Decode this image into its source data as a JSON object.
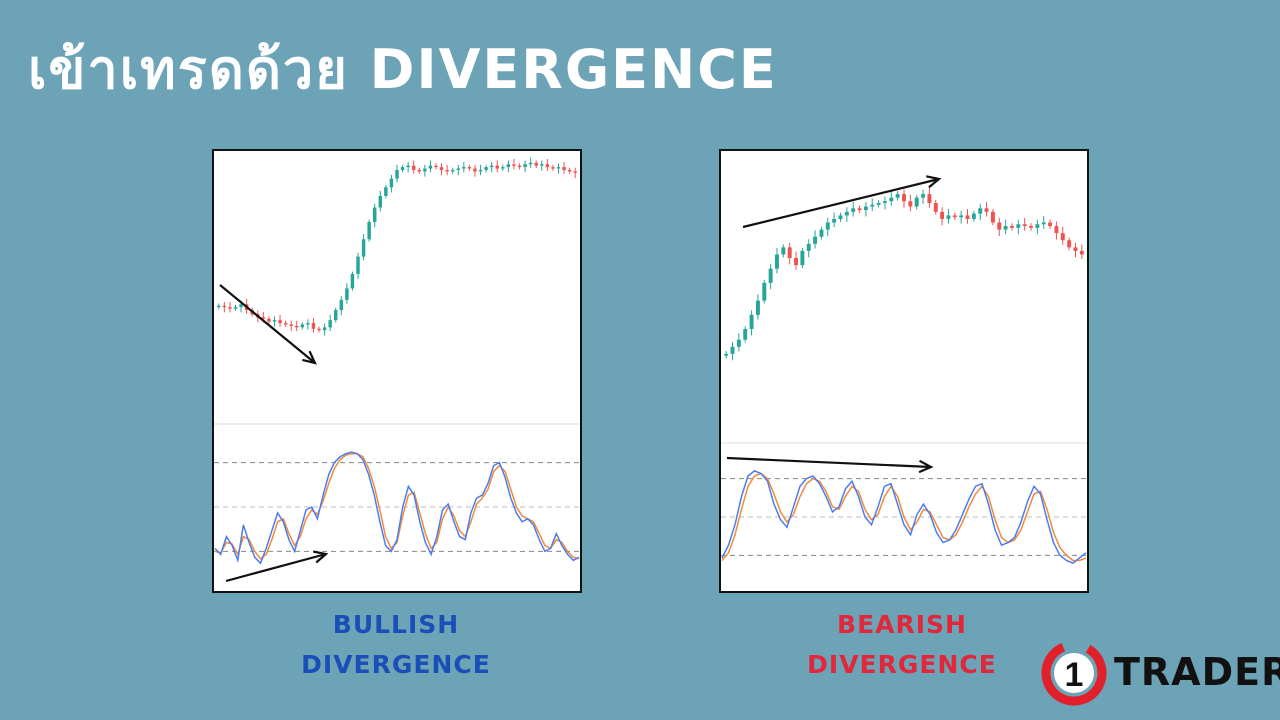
{
  "title": "เข้าเทรดด้วย DIVERGENCE",
  "colors": {
    "background": "#6ca3b7",
    "bull_candle": "#26a69a",
    "bear_candle": "#ef5350",
    "stoch_k": "#4e7cf0",
    "stoch_d": "#f08a3c",
    "bullish_caption": "#1a4fb8",
    "bearish_caption": "#e0283a",
    "logo_red": "#e0202a"
  },
  "captions": {
    "bullish_line1": "BULLISH",
    "bullish_line2": "DIVERGENCE",
    "bearish_line1": "BEARISH",
    "bearish_line2": "DIVERGENCE"
  },
  "logo": {
    "number": "1",
    "text": "TRADER",
    "icon": "ring-logo-icon"
  },
  "chart_data": [
    {
      "type": "candlestick",
      "name_hint": "bullish-divergence",
      "price": [
        112,
        111,
        110,
        111,
        113,
        109,
        106,
        104,
        103,
        101,
        102,
        100,
        99,
        98,
        97,
        99,
        100,
        96,
        95,
        97,
        102,
        109,
        116,
        124,
        134,
        146,
        158,
        170,
        180,
        188,
        194,
        200,
        206,
        208,
        209,
        206,
        205,
        207,
        209,
        208,
        206,
        205,
        206,
        207,
        208,
        207,
        205,
        206,
        208,
        209,
        207,
        208,
        210,
        209,
        208,
        210,
        211,
        209,
        210,
        208,
        207,
        208,
        206,
        205,
        204
      ],
      "stoch": [
        22,
        18,
        30,
        24,
        14,
        38,
        26,
        16,
        12,
        22,
        34,
        46,
        40,
        28,
        20,
        34,
        48,
        50,
        42,
        58,
        72,
        80,
        84,
        86,
        87,
        86,
        82,
        72,
        58,
        40,
        24,
        20,
        28,
        50,
        64,
        58,
        40,
        26,
        18,
        30,
        48,
        52,
        40,
        30,
        28,
        46,
        56,
        58,
        66,
        78,
        80,
        70,
        56,
        46,
        40,
        42,
        38,
        28,
        20,
        22,
        32,
        24,
        18,
        14,
        16
      ],
      "stoch_signal": [
        20,
        19,
        26,
        25,
        18,
        30,
        28,
        20,
        15,
        18,
        28,
        40,
        42,
        32,
        24,
        30,
        42,
        48,
        45,
        54,
        66,
        76,
        82,
        85,
        86,
        86,
        84,
        76,
        64,
        48,
        30,
        22,
        26,
        44,
        58,
        60,
        46,
        32,
        22,
        26,
        42,
        50,
        44,
        34,
        30,
        40,
        52,
        56,
        62,
        74,
        78,
        74,
        62,
        50,
        44,
        42,
        40,
        32,
        24,
        22,
        28,
        26,
        20,
        16,
        15
      ],
      "stoch_levels": [
        80,
        50,
        20
      ],
      "price_arrow_direction": "down",
      "stoch_arrow_direction": "up"
    },
    {
      "type": "candlestick",
      "name_hint": "bearish-divergence",
      "price": [
        100,
        104,
        108,
        114,
        122,
        130,
        140,
        148,
        156,
        160,
        154,
        150,
        158,
        162,
        166,
        170,
        174,
        176,
        178,
        180,
        182,
        181,
        183,
        184,
        185,
        186,
        188,
        190,
        186,
        183,
        188,
        190,
        185,
        180,
        176,
        178,
        177,
        178,
        176,
        179,
        182,
        180,
        174,
        170,
        172,
        171,
        173,
        172,
        171,
        173,
        174,
        172,
        168,
        164,
        160,
        158,
        156
      ],
      "stoch": [
        18,
        28,
        44,
        66,
        82,
        86,
        84,
        78,
        60,
        48,
        42,
        58,
        74,
        80,
        82,
        76,
        66,
        54,
        58,
        72,
        78,
        66,
        50,
        44,
        58,
        74,
        76,
        60,
        44,
        36,
        52,
        60,
        52,
        38,
        30,
        32,
        40,
        52,
        64,
        74,
        76,
        60,
        40,
        28,
        30,
        34,
        46,
        62,
        74,
        68,
        48,
        30,
        20,
        16,
        14,
        18,
        22
      ],
      "stoch_signal": [
        16,
        22,
        36,
        56,
        74,
        82,
        84,
        80,
        68,
        54,
        46,
        52,
        66,
        76,
        80,
        78,
        70,
        58,
        56,
        66,
        74,
        70,
        56,
        48,
        52,
        66,
        74,
        66,
        50,
        40,
        46,
        56,
        54,
        44,
        34,
        32,
        36,
        46,
        58,
        68,
        74,
        66,
        48,
        34,
        30,
        32,
        40,
        54,
        68,
        70,
        56,
        38,
        26,
        20,
        16,
        16,
        18
      ],
      "stoch_levels": [
        80,
        50,
        20
      ],
      "price_arrow_direction": "up",
      "stoch_arrow_direction": "up"
    }
  ]
}
